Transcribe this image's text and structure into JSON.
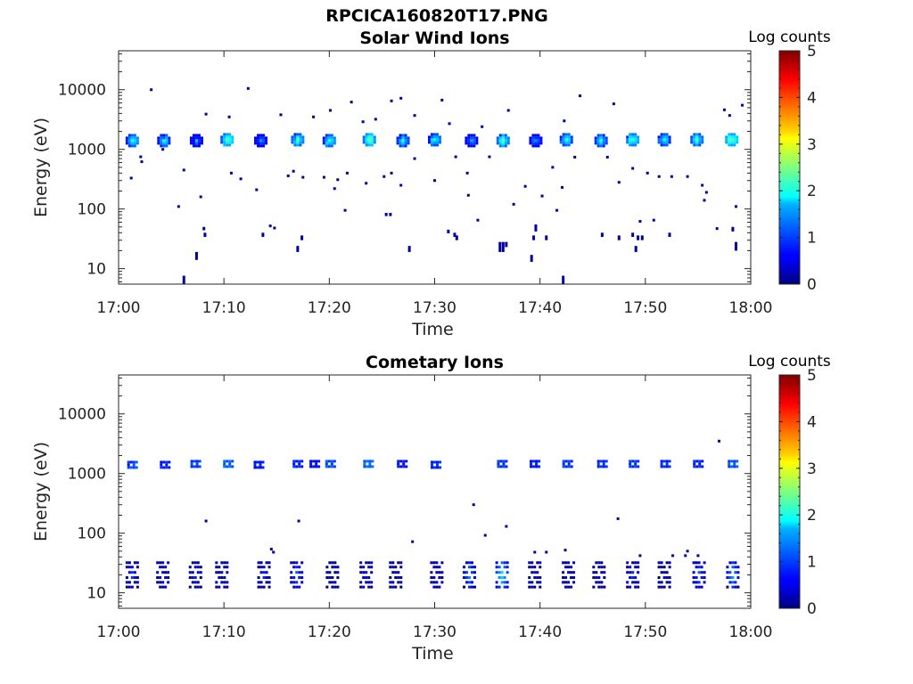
{
  "figure_title": "RPCICA160820T17.PNG",
  "chart_data": [
    {
      "type": "heatmap",
      "title": "Solar Wind Ions",
      "xlabel": "Time",
      "ylabel": "Energy (eV)",
      "x_ticks": [
        "17:00",
        "17:10",
        "17:20",
        "17:30",
        "17:40",
        "17:50",
        "18:00"
      ],
      "x_range_min": [
        0,
        60
      ],
      "y_scale": "log",
      "ylim": [
        5.5,
        45000
      ],
      "y_ticks": [
        10,
        100,
        1000,
        10000
      ],
      "y_tick_labels": [
        "10",
        "100",
        "1000",
        "10000"
      ],
      "colorbar": {
        "label": "Log counts",
        "range": [
          0,
          5
        ],
        "ticks": [
          "0",
          "1",
          "2",
          "3",
          "4",
          "5"
        ],
        "colormap": "jet"
      },
      "blobs": [
        {
          "t": 1.3,
          "e": 1400,
          "v": 2.0
        },
        {
          "t": 4.3,
          "e": 1400,
          "v": 1.8
        },
        {
          "t": 7.4,
          "e": 1400,
          "v": 1.3
        },
        {
          "t": 10.3,
          "e": 1450,
          "v": 2.3
        },
        {
          "t": 13.5,
          "e": 1400,
          "v": 1.2
        },
        {
          "t": 17.0,
          "e": 1450,
          "v": 2.1
        },
        {
          "t": 20.0,
          "e": 1400,
          "v": 2.0
        },
        {
          "t": 23.8,
          "e": 1450,
          "v": 2.3
        },
        {
          "t": 27.0,
          "e": 1400,
          "v": 1.8
        },
        {
          "t": 30.0,
          "e": 1450,
          "v": 1.9
        },
        {
          "t": 33.5,
          "e": 1400,
          "v": 1.3
        },
        {
          "t": 36.5,
          "e": 1400,
          "v": 2.1
        },
        {
          "t": 39.6,
          "e": 1400,
          "v": 1.3
        },
        {
          "t": 42.5,
          "e": 1450,
          "v": 1.9
        },
        {
          "t": 45.8,
          "e": 1400,
          "v": 1.8
        },
        {
          "t": 48.8,
          "e": 1450,
          "v": 2.1
        },
        {
          "t": 51.8,
          "e": 1450,
          "v": 1.8
        },
        {
          "t": 54.9,
          "e": 1450,
          "v": 2.0
        },
        {
          "t": 58.2,
          "e": 1450,
          "v": 2.3
        }
      ],
      "specks": [
        {
          "t": 3.1,
          "e": 10000
        },
        {
          "t": 12.3,
          "e": 10500
        },
        {
          "t": 26.8,
          "e": 7200
        },
        {
          "t": 25.9,
          "e": 6500
        },
        {
          "t": 30.7,
          "e": 6700
        },
        {
          "t": 43.8,
          "e": 7900
        },
        {
          "t": 22.1,
          "e": 6200
        },
        {
          "t": 8.3,
          "e": 3900
        },
        {
          "t": 10.5,
          "e": 3500
        },
        {
          "t": 15.4,
          "e": 3800
        },
        {
          "t": 18.5,
          "e": 3500
        },
        {
          "t": 20.1,
          "e": 4500
        },
        {
          "t": 37.0,
          "e": 4500
        },
        {
          "t": 47.0,
          "e": 5800
        },
        {
          "t": 57.5,
          "e": 4600
        },
        {
          "t": 58.0,
          "e": 3700
        },
        {
          "t": 59.2,
          "e": 5500
        },
        {
          "t": 24.4,
          "e": 3200
        },
        {
          "t": 28.1,
          "e": 3700
        },
        {
          "t": 31.4,
          "e": 2700
        },
        {
          "t": 34.5,
          "e": 2400
        },
        {
          "t": 42.3,
          "e": 3000
        },
        {
          "t": 23.2,
          "e": 2900
        },
        {
          "t": 2.1,
          "e": 750
        },
        {
          "t": 2.2,
          "e": 620
        },
        {
          "t": 4.2,
          "e": 1000
        },
        {
          "t": 6.2,
          "e": 450
        },
        {
          "t": 1.2,
          "e": 330
        },
        {
          "t": 10.7,
          "e": 400
        },
        {
          "t": 11.6,
          "e": 320
        },
        {
          "t": 13.1,
          "e": 210
        },
        {
          "t": 16.1,
          "e": 360
        },
        {
          "t": 16.6,
          "e": 430
        },
        {
          "t": 17.5,
          "e": 340
        },
        {
          "t": 19.5,
          "e": 340
        },
        {
          "t": 20.5,
          "e": 220
        },
        {
          "t": 20.8,
          "e": 310
        },
        {
          "t": 21.7,
          "e": 400
        },
        {
          "t": 23.5,
          "e": 270
        },
        {
          "t": 25.2,
          "e": 350
        },
        {
          "t": 25.9,
          "e": 400
        },
        {
          "t": 28.1,
          "e": 700
        },
        {
          "t": 30.0,
          "e": 300
        },
        {
          "t": 32.0,
          "e": 750
        },
        {
          "t": 33.1,
          "e": 400
        },
        {
          "t": 35.2,
          "e": 750
        },
        {
          "t": 38.6,
          "e": 240
        },
        {
          "t": 41.2,
          "e": 500
        },
        {
          "t": 42.1,
          "e": 230
        },
        {
          "t": 43.3,
          "e": 740
        },
        {
          "t": 46.4,
          "e": 740
        },
        {
          "t": 47.5,
          "e": 280
        },
        {
          "t": 48.8,
          "e": 480
        },
        {
          "t": 50.2,
          "e": 400
        },
        {
          "t": 51.3,
          "e": 350
        },
        {
          "t": 52.5,
          "e": 350
        },
        {
          "t": 54.0,
          "e": 350
        },
        {
          "t": 55.4,
          "e": 250
        },
        {
          "t": 55.6,
          "e": 140
        },
        {
          "t": 55.8,
          "e": 190
        },
        {
          "t": 58.6,
          "e": 110
        },
        {
          "t": 5.7,
          "e": 110
        },
        {
          "t": 7.8,
          "e": 160
        },
        {
          "t": 14.4,
          "e": 52
        },
        {
          "t": 14.8,
          "e": 48
        },
        {
          "t": 21.5,
          "e": 95
        },
        {
          "t": 26.8,
          "e": 250
        },
        {
          "t": 33.2,
          "e": 170
        },
        {
          "t": 34.1,
          "e": 65
        },
        {
          "t": 37.5,
          "e": 120
        },
        {
          "t": 40.2,
          "e": 165
        },
        {
          "t": 41.6,
          "e": 95
        },
        {
          "t": 49.5,
          "e": 62
        },
        {
          "t": 50.8,
          "e": 65
        },
        {
          "t": 56.8,
          "e": 47
        }
      ],
      "low_marks": [
        {
          "t": 6.2,
          "lo": 5.6,
          "hi": 7.6
        },
        {
          "t": 7.4,
          "lo": 14,
          "hi": 19
        },
        {
          "t": 8.1,
          "lo": 44,
          "hi": 50
        },
        {
          "t": 8.2,
          "lo": 34,
          "hi": 40
        },
        {
          "t": 13.7,
          "lo": 34,
          "hi": 40
        },
        {
          "t": 17.0,
          "lo": 19,
          "hi": 24
        },
        {
          "t": 17.4,
          "lo": 30,
          "hi": 36
        },
        {
          "t": 25.4,
          "lo": 76,
          "hi": 86
        },
        {
          "t": 25.8,
          "lo": 76,
          "hi": 86
        },
        {
          "t": 27.6,
          "lo": 19,
          "hi": 24
        },
        {
          "t": 31.3,
          "lo": 39,
          "hi": 45
        },
        {
          "t": 31.9,
          "lo": 34,
          "hi": 40
        },
        {
          "t": 32.1,
          "lo": 30,
          "hi": 36
        },
        {
          "t": 36.2,
          "lo": 19,
          "hi": 28
        },
        {
          "t": 36.5,
          "lo": 19,
          "hi": 28
        },
        {
          "t": 36.8,
          "lo": 23,
          "hi": 28
        },
        {
          "t": 39.2,
          "lo": 13,
          "hi": 17
        },
        {
          "t": 39.6,
          "lo": 42,
          "hi": 55
        },
        {
          "t": 39.4,
          "lo": 30,
          "hi": 36
        },
        {
          "t": 40.6,
          "lo": 30,
          "hi": 36
        },
        {
          "t": 42.2,
          "lo": 5.6,
          "hi": 7.6
        },
        {
          "t": 45.9,
          "lo": 34,
          "hi": 40
        },
        {
          "t": 47.5,
          "lo": 30,
          "hi": 36
        },
        {
          "t": 48.8,
          "lo": 34,
          "hi": 40
        },
        {
          "t": 49.1,
          "lo": 19,
          "hi": 24
        },
        {
          "t": 49.3,
          "lo": 30,
          "hi": 36
        },
        {
          "t": 49.7,
          "lo": 30,
          "hi": 36
        },
        {
          "t": 52.3,
          "lo": 34,
          "hi": 40
        },
        {
          "t": 58.3,
          "lo": 42,
          "hi": 50
        },
        {
          "t": 58.6,
          "lo": 20,
          "hi": 28
        }
      ]
    },
    {
      "type": "heatmap",
      "title": "Cometary Ions",
      "xlabel": "Time",
      "ylabel": "Energy (eV)",
      "x_ticks": [
        "17:00",
        "17:10",
        "17:20",
        "17:30",
        "17:40",
        "17:50",
        "18:00"
      ],
      "x_range_min": [
        0,
        60
      ],
      "y_scale": "log",
      "ylim": [
        5.5,
        45000
      ],
      "y_ticks": [
        10,
        100,
        1000,
        10000
      ],
      "y_tick_labels": [
        "10",
        "100",
        "1000",
        "10000"
      ],
      "colorbar": {
        "label": "Log counts",
        "range": [
          0,
          5
        ],
        "ticks": [
          "0",
          "1",
          "2",
          "3",
          "4",
          "5"
        ],
        "colormap": "jet"
      },
      "upper_marks": [
        {
          "t": 1.2,
          "e": 1400,
          "v": 0.9
        },
        {
          "t": 4.3,
          "e": 1400,
          "v": 0.7
        },
        {
          "t": 7.2,
          "e": 1450,
          "v": 0.8
        },
        {
          "t": 10.3,
          "e": 1450,
          "v": 1.0
        },
        {
          "t": 13.2,
          "e": 1400,
          "v": 0.6
        },
        {
          "t": 16.9,
          "e": 1450,
          "v": 0.7
        },
        {
          "t": 18.5,
          "e": 1450,
          "v": 0.5
        },
        {
          "t": 20.0,
          "e": 1450,
          "v": 0.9
        },
        {
          "t": 23.6,
          "e": 1450,
          "v": 1.0
        },
        {
          "t": 26.8,
          "e": 1450,
          "v": 0.6
        },
        {
          "t": 30.0,
          "e": 1400,
          "v": 0.7
        },
        {
          "t": 36.3,
          "e": 1450,
          "v": 0.8
        },
        {
          "t": 39.4,
          "e": 1450,
          "v": 0.6
        },
        {
          "t": 42.5,
          "e": 1450,
          "v": 0.8
        },
        {
          "t": 45.8,
          "e": 1450,
          "v": 0.7
        },
        {
          "t": 48.8,
          "e": 1450,
          "v": 0.8
        },
        {
          "t": 51.8,
          "e": 1450,
          "v": 0.7
        },
        {
          "t": 54.9,
          "e": 1450,
          "v": 0.7
        },
        {
          "t": 58.2,
          "e": 1450,
          "v": 0.9
        }
      ],
      "specks": [
        {
          "t": 57.0,
          "e": 3500
        },
        {
          "t": 8.3,
          "e": 160
        },
        {
          "t": 17.1,
          "e": 160
        },
        {
          "t": 47.4,
          "e": 175
        },
        {
          "t": 27.9,
          "e": 72
        },
        {
          "t": 33.7,
          "e": 300
        },
        {
          "t": 34.8,
          "e": 92
        },
        {
          "t": 36.8,
          "e": 130
        },
        {
          "t": 14.5,
          "e": 54
        },
        {
          "t": 14.7,
          "e": 48
        },
        {
          "t": 39.5,
          "e": 48
        },
        {
          "t": 40.6,
          "e": 48
        },
        {
          "t": 42.4,
          "e": 52
        },
        {
          "t": 54.0,
          "e": 50
        },
        {
          "t": 55.0,
          "e": 42
        },
        {
          "t": 53.8,
          "e": 42
        },
        {
          "t": 52.6,
          "e": 42
        },
        {
          "t": 49.5,
          "e": 42
        }
      ],
      "low_marks": [
        {
          "t": 1.3,
          "v": 1.0
        },
        {
          "t": 4.2,
          "v": 0.5
        },
        {
          "t": 7.3,
          "v": 0.9
        },
        {
          "t": 9.8,
          "v": 0.3
        },
        {
          "t": 13.8,
          "v": 0.9
        },
        {
          "t": 16.9,
          "v": 1.2
        },
        {
          "t": 20.3,
          "v": 0.3
        },
        {
          "t": 23.5,
          "v": 0.6
        },
        {
          "t": 26.3,
          "v": 0.3
        },
        {
          "t": 30.2,
          "v": 0.3
        },
        {
          "t": 33.3,
          "v": 1.4
        },
        {
          "t": 36.4,
          "v": 1.8
        },
        {
          "t": 39.5,
          "v": 0.6
        },
        {
          "t": 42.7,
          "v": 0.2
        },
        {
          "t": 45.6,
          "v": 0.6
        },
        {
          "t": 48.8,
          "v": 0.9
        },
        {
          "t": 51.8,
          "v": 0.6
        },
        {
          "t": 55.1,
          "v": 1.2
        },
        {
          "t": 58.3,
          "v": 1.5
        }
      ]
    }
  ]
}
